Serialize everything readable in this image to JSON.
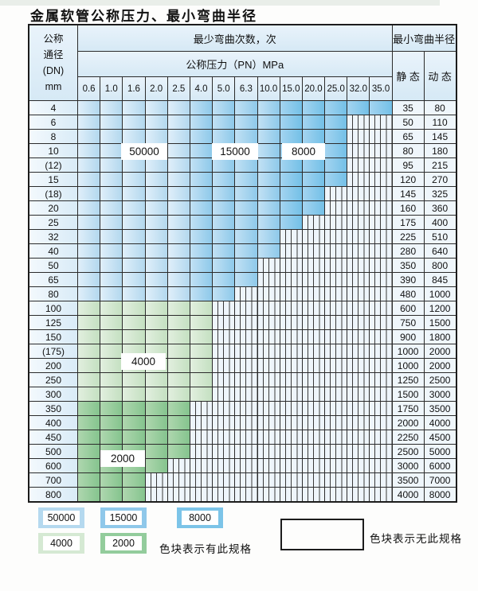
{
  "title": "金属软管公称压力、最小弯曲半径",
  "table": {
    "header": {
      "dn_label_lines": [
        "公称",
        "通径",
        "(DN)",
        "mm"
      ],
      "bend_cycles_label": "最少弯曲次数，次",
      "pressure_label": "公称压力（PN）MPa",
      "pressure_values": [
        "0.6",
        "1.0",
        "1.6",
        "2.0",
        "2.5",
        "4.0",
        "5.0",
        "6.3",
        "10.0",
        "15.0",
        "20.0",
        "25.0",
        "32.0",
        "35.0"
      ],
      "bend_radius_label": "最小弯曲半径",
      "static_label": "静 态",
      "dynamic_label": "动 态"
    },
    "cell_code_meaning": {
      "L": "50000",
      "M": "15000",
      "D": "8000",
      "A": "4000",
      "B": "2000",
      "H": "无此规格"
    },
    "rows": [
      {
        "dn": "4",
        "static": "35",
        "dynamic": "80",
        "cells": [
          "L",
          "L",
          "L",
          "L",
          "L",
          "M",
          "M",
          "M",
          "M",
          "D",
          "D",
          "D",
          "D",
          "D"
        ]
      },
      {
        "dn": "6",
        "static": "50",
        "dynamic": "110",
        "cells": [
          "L",
          "L",
          "L",
          "L",
          "L",
          "M",
          "M",
          "M",
          "M",
          "D",
          "D",
          "D",
          "H",
          "H"
        ]
      },
      {
        "dn": "8",
        "static": "65",
        "dynamic": "145",
        "cells": [
          "L",
          "L",
          "L",
          "L",
          "L",
          "M",
          "M",
          "M",
          "M",
          "D",
          "D",
          "D",
          "H",
          "H"
        ]
      },
      {
        "dn": "10",
        "static": "80",
        "dynamic": "180",
        "cells": [
          "L",
          "L",
          "L",
          "L",
          "L",
          "M",
          "M",
          "M",
          "M",
          "D",
          "D",
          "D",
          "H",
          "H"
        ]
      },
      {
        "dn": "(12)",
        "static": "95",
        "dynamic": "215",
        "cells": [
          "L",
          "L",
          "L",
          "L",
          "L",
          "M",
          "M",
          "M",
          "M",
          "D",
          "D",
          "D",
          "H",
          "H"
        ]
      },
      {
        "dn": "15",
        "static": "120",
        "dynamic": "270",
        "cells": [
          "L",
          "L",
          "L",
          "L",
          "L",
          "M",
          "M",
          "M",
          "M",
          "D",
          "D",
          "D",
          "H",
          "H"
        ]
      },
      {
        "dn": "(18)",
        "static": "145",
        "dynamic": "325",
        "cells": [
          "L",
          "L",
          "L",
          "L",
          "L",
          "M",
          "M",
          "M",
          "M",
          "D",
          "D",
          "H",
          "H",
          "H"
        ]
      },
      {
        "dn": "20",
        "static": "160",
        "dynamic": "360",
        "cells": [
          "L",
          "L",
          "L",
          "L",
          "L",
          "M",
          "M",
          "M",
          "M",
          "D",
          "D",
          "H",
          "H",
          "H"
        ]
      },
      {
        "dn": "25",
        "static": "175",
        "dynamic": "400",
        "cells": [
          "L",
          "L",
          "L",
          "L",
          "L",
          "M",
          "M",
          "M",
          "M",
          "D",
          "H",
          "H",
          "H",
          "H"
        ]
      },
      {
        "dn": "32",
        "static": "225",
        "dynamic": "510",
        "cells": [
          "L",
          "L",
          "L",
          "L",
          "L",
          "M",
          "M",
          "M",
          "M",
          "H",
          "H",
          "H",
          "H",
          "H"
        ]
      },
      {
        "dn": "40",
        "static": "280",
        "dynamic": "640",
        "cells": [
          "L",
          "L",
          "L",
          "L",
          "L",
          "M",
          "M",
          "M",
          "M",
          "H",
          "H",
          "H",
          "H",
          "H"
        ]
      },
      {
        "dn": "50",
        "static": "350",
        "dynamic": "800",
        "cells": [
          "L",
          "L",
          "L",
          "L",
          "L",
          "M",
          "M",
          "M",
          "H",
          "H",
          "H",
          "H",
          "H",
          "H"
        ]
      },
      {
        "dn": "65",
        "static": "390",
        "dynamic": "845",
        "cells": [
          "L",
          "L",
          "L",
          "L",
          "L",
          "M",
          "M",
          "M",
          "H",
          "H",
          "H",
          "H",
          "H",
          "H"
        ]
      },
      {
        "dn": "80",
        "static": "480",
        "dynamic": "1000",
        "cells": [
          "L",
          "L",
          "L",
          "L",
          "L",
          "M",
          "M",
          "H",
          "H",
          "H",
          "H",
          "H",
          "H",
          "H"
        ]
      },
      {
        "dn": "100",
        "static": "600",
        "dynamic": "1200",
        "cells": [
          "A",
          "A",
          "A",
          "A",
          "A",
          "A",
          "H",
          "H",
          "H",
          "H",
          "H",
          "H",
          "H",
          "H"
        ]
      },
      {
        "dn": "125",
        "static": "750",
        "dynamic": "1500",
        "cells": [
          "A",
          "A",
          "A",
          "A",
          "A",
          "A",
          "H",
          "H",
          "H",
          "H",
          "H",
          "H",
          "H",
          "H"
        ]
      },
      {
        "dn": "150",
        "static": "900",
        "dynamic": "1800",
        "cells": [
          "A",
          "A",
          "A",
          "A",
          "A",
          "A",
          "H",
          "H",
          "H",
          "H",
          "H",
          "H",
          "H",
          "H"
        ]
      },
      {
        "dn": "(175)",
        "static": "1000",
        "dynamic": "2000",
        "cells": [
          "A",
          "A",
          "A",
          "A",
          "A",
          "A",
          "H",
          "H",
          "H",
          "H",
          "H",
          "H",
          "H",
          "H"
        ]
      },
      {
        "dn": "200",
        "static": "1000",
        "dynamic": "2000",
        "cells": [
          "A",
          "A",
          "A",
          "A",
          "A",
          "A",
          "H",
          "H",
          "H",
          "H",
          "H",
          "H",
          "H",
          "H"
        ]
      },
      {
        "dn": "250",
        "static": "1250",
        "dynamic": "2500",
        "cells": [
          "A",
          "A",
          "A",
          "A",
          "A",
          "A",
          "H",
          "H",
          "H",
          "H",
          "H",
          "H",
          "H",
          "H"
        ]
      },
      {
        "dn": "300",
        "static": "1500",
        "dynamic": "3000",
        "cells": [
          "A",
          "A",
          "A",
          "A",
          "A",
          "A",
          "H",
          "H",
          "H",
          "H",
          "H",
          "H",
          "H",
          "H"
        ]
      },
      {
        "dn": "350",
        "static": "1750",
        "dynamic": "3500",
        "cells": [
          "B",
          "B",
          "B",
          "B",
          "B",
          "H",
          "H",
          "H",
          "H",
          "H",
          "H",
          "H",
          "H",
          "H"
        ]
      },
      {
        "dn": "400",
        "static": "2000",
        "dynamic": "4000",
        "cells": [
          "B",
          "B",
          "B",
          "B",
          "B",
          "H",
          "H",
          "H",
          "H",
          "H",
          "H",
          "H",
          "H",
          "H"
        ]
      },
      {
        "dn": "450",
        "static": "2250",
        "dynamic": "4500",
        "cells": [
          "B",
          "B",
          "B",
          "B",
          "B",
          "H",
          "H",
          "H",
          "H",
          "H",
          "H",
          "H",
          "H",
          "H"
        ]
      },
      {
        "dn": "500",
        "static": "2500",
        "dynamic": "5000",
        "cells": [
          "B",
          "B",
          "B",
          "B",
          "B",
          "H",
          "H",
          "H",
          "H",
          "H",
          "H",
          "H",
          "H",
          "H"
        ]
      },
      {
        "dn": "600",
        "static": "3000",
        "dynamic": "6000",
        "cells": [
          "B",
          "B",
          "B",
          "B",
          "H",
          "H",
          "H",
          "H",
          "H",
          "H",
          "H",
          "H",
          "H",
          "H"
        ]
      },
      {
        "dn": "700",
        "static": "3500",
        "dynamic": "7000",
        "cells": [
          "B",
          "B",
          "B",
          "H",
          "H",
          "H",
          "H",
          "H",
          "H",
          "H",
          "H",
          "H",
          "H",
          "H"
        ]
      },
      {
        "dn": "800",
        "static": "4000",
        "dynamic": "8000",
        "cells": [
          "B",
          "B",
          "B",
          "H",
          "H",
          "H",
          "H",
          "H",
          "H",
          "H",
          "H",
          "H",
          "H",
          "H"
        ]
      }
    ]
  },
  "overlays": [
    {
      "text": "50000"
    },
    {
      "text": "15000"
    },
    {
      "text": "8000"
    },
    {
      "text": "4000"
    },
    {
      "text": "2000"
    }
  ],
  "legend": {
    "items": [
      {
        "value": "50000",
        "color": "#b5d9ef"
      },
      {
        "value": "15000",
        "color": "#8fc8ea"
      },
      {
        "value": "8000",
        "color": "#7cc4e8"
      },
      {
        "value": "4000",
        "color": "#d5e9d3"
      },
      {
        "value": "2000",
        "color": "#93cc9c"
      }
    ],
    "has_spec_text": "色块表示有此规格",
    "no_spec_text": "色块表示无此规格"
  },
  "colors": {
    "grid": "#2b2b2b",
    "hd1": "#e9f3fb",
    "hd2": "#d6e9f5",
    "dn1": "#f3f9fd",
    "dn2": "#d9ebf7",
    "val": "#eff6fb",
    "l1": "#e0effa",
    "l2": "#b3d8ee",
    "m1": "#c2e1f4",
    "m2": "#8ec9ea",
    "k1": "#a4d4f0",
    "k2": "#73c0e7",
    "a1": "#e2efdf",
    "a2": "#c4e0c1",
    "b1": "#afd7af",
    "b2": "#85c48e",
    "hbg": "#eef5fb",
    "hline": "#3a3a3a"
  }
}
